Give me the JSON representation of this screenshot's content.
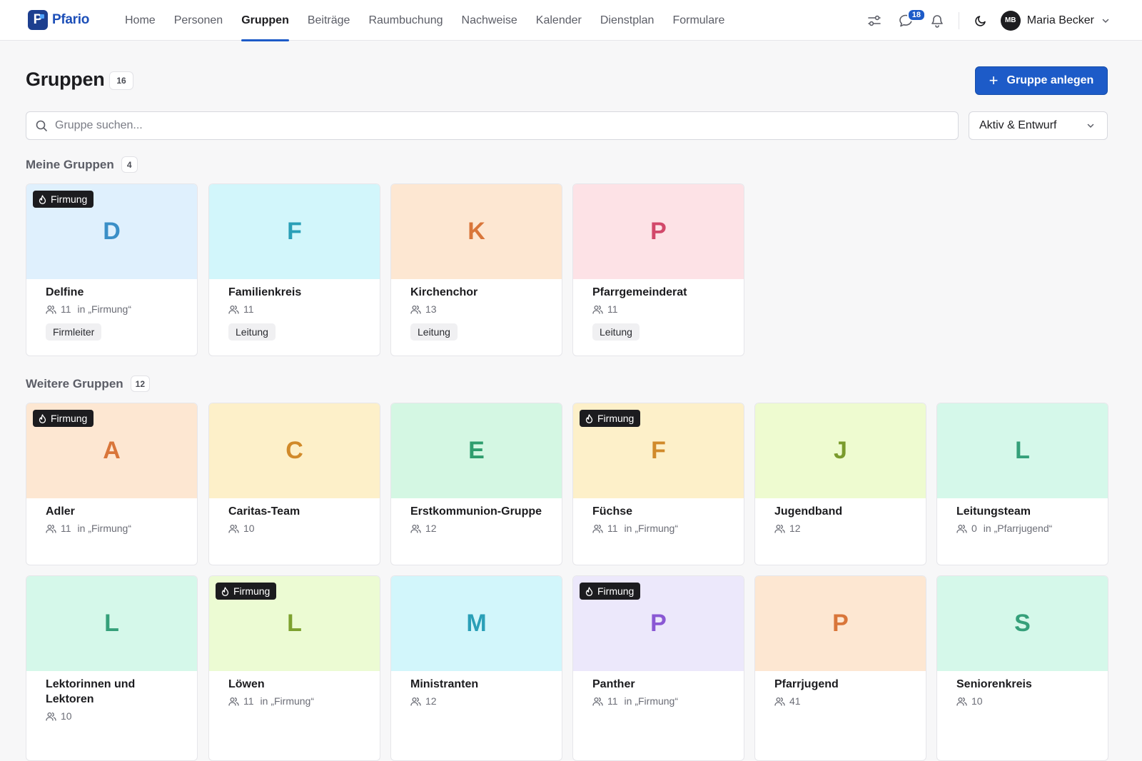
{
  "app": {
    "logo_letter": "P",
    "name": "Pfario"
  },
  "nav": [
    {
      "label": "Home",
      "active": false
    },
    {
      "label": "Personen",
      "active": false
    },
    {
      "label": "Gruppen",
      "active": true
    },
    {
      "label": "Beiträge",
      "active": false
    },
    {
      "label": "Raumbuchung",
      "active": false
    },
    {
      "label": "Nachweise",
      "active": false
    },
    {
      "label": "Kalender",
      "active": false
    },
    {
      "label": "Dienstplan",
      "active": false
    },
    {
      "label": "Formulare",
      "active": false
    }
  ],
  "topbar": {
    "messages_badge": "18",
    "user_initials": "MB",
    "user_name": "Maria Becker",
    "icons": [
      "sliders-icon",
      "chat-icon",
      "bell-icon",
      "moon-icon",
      "chevron-down-icon"
    ]
  },
  "header": {
    "title": "Gruppen",
    "count": "16",
    "create_button": "Gruppe anlegen"
  },
  "filters": {
    "search_placeholder": "Gruppe suchen...",
    "status_select": "Aktiv & Entwurf"
  },
  "colors": {
    "primary": "#1d5bc8",
    "tag_bg": "#1c1c1f"
  },
  "sections": {
    "mine": {
      "title": "Meine Gruppen",
      "count": "4",
      "cards": [
        {
          "letter": "D",
          "name": "Delfine",
          "members": "11",
          "parent": "in „Firmung“",
          "tag": "Firmung",
          "role": "Firmleiter",
          "color": "blue"
        },
        {
          "letter": "F",
          "name": "Familienkreis",
          "members": "11",
          "parent": "",
          "tag": "",
          "role": "Leitung",
          "color": "cyan"
        },
        {
          "letter": "K",
          "name": "Kirchenchor",
          "members": "13",
          "parent": "",
          "tag": "",
          "role": "Leitung",
          "color": "peach"
        },
        {
          "letter": "P",
          "name": "Pfarrgemeinderat",
          "members": "11",
          "parent": "",
          "tag": "",
          "role": "Leitung",
          "color": "pink"
        }
      ]
    },
    "other": {
      "title": "Weitere Gruppen",
      "count": "12",
      "cards": [
        {
          "letter": "A",
          "name": "Adler",
          "members": "11",
          "parent": "in „Firmung“",
          "tag": "Firmung",
          "color": "peach"
        },
        {
          "letter": "C",
          "name": "Caritas-Team",
          "members": "10",
          "parent": "",
          "tag": "",
          "color": "yellow"
        },
        {
          "letter": "E",
          "name": "Erstkommunion-Gruppe",
          "members": "12",
          "parent": "",
          "tag": "",
          "color": "mint"
        },
        {
          "letter": "F",
          "name": "Füchse",
          "members": "11",
          "parent": "in „Firmung“",
          "tag": "Firmung",
          "color": "yellow"
        },
        {
          "letter": "J",
          "name": "Jugendband",
          "members": "12",
          "parent": "",
          "tag": "",
          "color": "lime"
        },
        {
          "letter": "L",
          "name": "Leitungsteam",
          "members": "0",
          "parent": "in „Pfarrjugend“",
          "tag": "",
          "color": "teal"
        },
        {
          "letter": "L",
          "name": "Lektorinnen und Lektoren",
          "members": "10",
          "parent": "",
          "tag": "",
          "color": "teal"
        },
        {
          "letter": "L",
          "name": "Löwen",
          "members": "11",
          "parent": "in „Firmung“",
          "tag": "Firmung",
          "color": "lime2"
        },
        {
          "letter": "M",
          "name": "Ministranten",
          "members": "12",
          "parent": "",
          "tag": "",
          "color": "cyan"
        },
        {
          "letter": "P",
          "name": "Panther",
          "members": "11",
          "parent": "in „Firmung“",
          "tag": "Firmung",
          "color": "violet"
        },
        {
          "letter": "P",
          "name": "Pfarrjugend",
          "members": "41",
          "parent": "",
          "tag": "",
          "color": "peach"
        },
        {
          "letter": "S",
          "name": "Seniorenkreis",
          "members": "10",
          "parent": "",
          "tag": "",
          "color": "teal"
        }
      ]
    }
  }
}
